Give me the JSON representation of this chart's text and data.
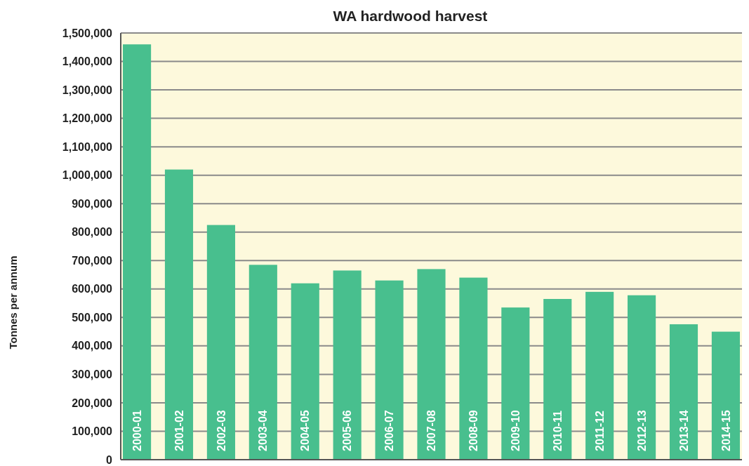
{
  "chart_data": {
    "type": "bar",
    "title": "WA hardwood harvest",
    "ylabel": "Tonnes per annum",
    "categories": [
      "2000-01",
      "2001-02",
      "2002-03",
      "2003-04",
      "2004-05",
      "2005-06",
      "2006-07",
      "2007-08",
      "2008-09",
      "2009-10",
      "2010-11",
      "2011-12",
      "2012-13",
      "2013-14",
      "2014-15"
    ],
    "values": [
      1460000,
      1020000,
      825000,
      685000,
      620000,
      665000,
      630000,
      670000,
      640000,
      535000,
      565000,
      590000,
      578000,
      476000,
      450000
    ],
    "color": "#48bf8e",
    "ylim": [
      0,
      1500000
    ],
    "yticks": [
      {
        "value": 0,
        "label": "0"
      },
      {
        "value": 100000,
        "label": "100,000"
      },
      {
        "value": 200000,
        "label": "200,000"
      },
      {
        "value": 300000,
        "label": "300,000"
      },
      {
        "value": 400000,
        "label": "400,000"
      },
      {
        "value": 500000,
        "label": "500,000"
      },
      {
        "value": 600000,
        "label": "600,000"
      },
      {
        "value": 700000,
        "label": "700,000"
      },
      {
        "value": 800000,
        "label": "800,000"
      },
      {
        "value": 900000,
        "label": "900,000"
      },
      {
        "value": 1000000,
        "label": "1,000,000"
      },
      {
        "value": 1100000,
        "label": "1,100,000"
      },
      {
        "value": 1200000,
        "label": "1,200,000"
      },
      {
        "value": 1300000,
        "label": "1,300,000"
      },
      {
        "value": 1400000,
        "label": "1,400,000"
      },
      {
        "value": 1500000,
        "label": "1,500,000"
      }
    ],
    "grid": "y"
  }
}
